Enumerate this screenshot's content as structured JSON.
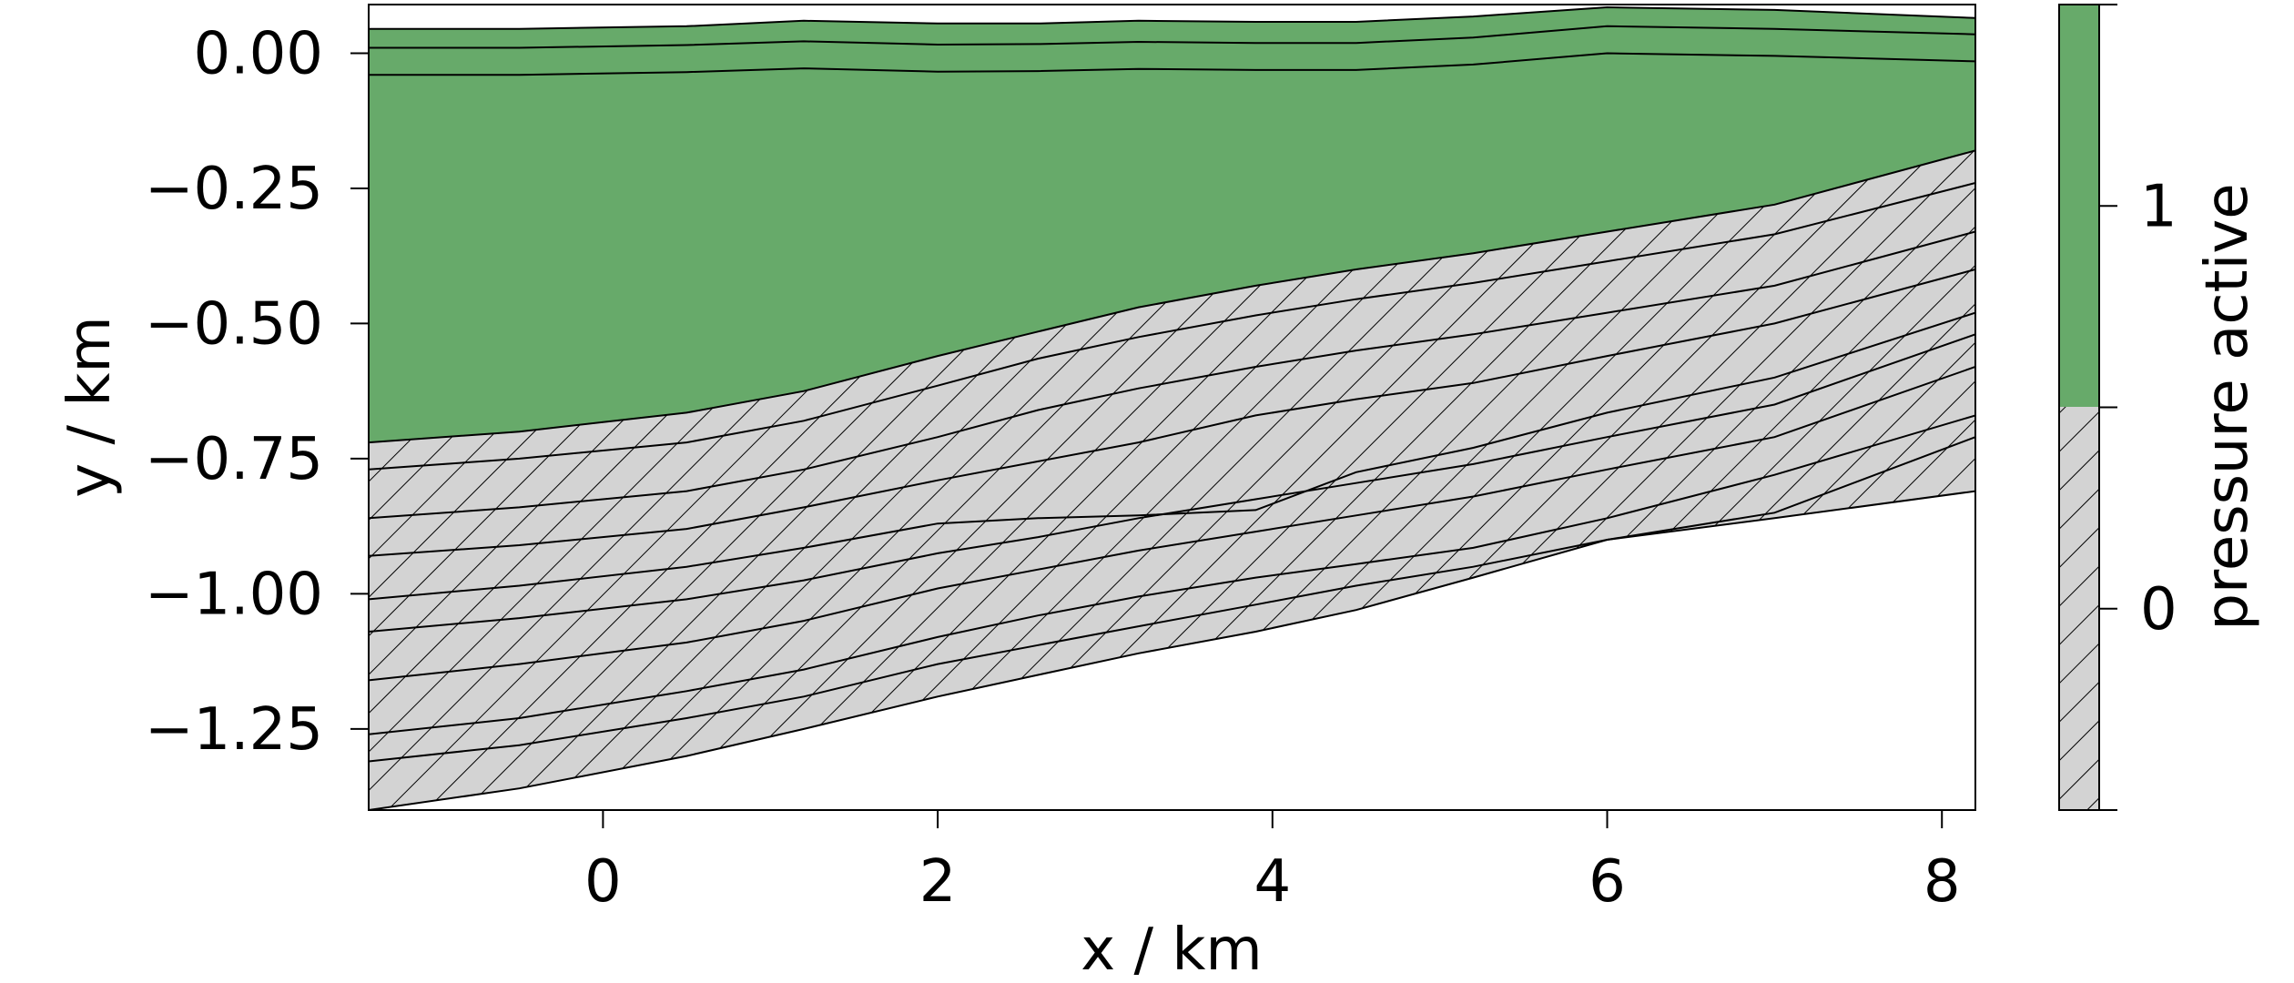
{
  "chart_data": {
    "type": "heatmap",
    "title": "",
    "xlabel": "x / km",
    "ylabel": "y / km",
    "xlim": [
      -1.4,
      8.2
    ],
    "ylim": [
      -1.4,
      0.09
    ],
    "x_ticks": [
      {
        "value": 0,
        "label": "0"
      },
      {
        "value": 2,
        "label": "2"
      },
      {
        "value": 4,
        "label": "4"
      },
      {
        "value": 6,
        "label": "6"
      },
      {
        "value": 8,
        "label": "8"
      }
    ],
    "y_ticks": [
      {
        "value": 0.0,
        "label": "0.00"
      },
      {
        "value": -0.25,
        "label": "−0.25"
      },
      {
        "value": -0.5,
        "label": "−0.50"
      },
      {
        "value": -0.75,
        "label": "−0.75"
      },
      {
        "value": -1.0,
        "label": "−1.00"
      },
      {
        "value": -1.25,
        "label": "−1.25"
      }
    ],
    "colorbar": {
      "label": "pressure active",
      "ticks": [
        {
          "value": 1,
          "label": "1"
        },
        {
          "value": 0,
          "label": "0"
        }
      ],
      "classes": [
        {
          "value": 1,
          "color": "#67aa6a",
          "hatch": false
        },
        {
          "value": 0,
          "color": "#d3d3d3",
          "hatch": true
        }
      ]
    },
    "colors": {
      "active": "#67aa6a",
      "inactive": "#d3d3d3",
      "edge": "#000000"
    },
    "x": [
      -1.4,
      -0.5,
      0.5,
      1.2,
      2.0,
      2.6,
      3.2,
      3.9,
      4.5,
      5.2,
      6.0,
      7.0,
      8.2
    ],
    "interfaces": [
      {
        "name": "top",
        "y": [
          0.045,
          0.045,
          0.05,
          0.06,
          0.055,
          0.055,
          0.06,
          0.058,
          0.058,
          0.068,
          0.085,
          0.08,
          0.065
        ]
      },
      {
        "name": "i1",
        "y": [
          0.01,
          0.01,
          0.015,
          0.022,
          0.016,
          0.017,
          0.021,
          0.019,
          0.019,
          0.029,
          0.05,
          0.045,
          0.035
        ]
      },
      {
        "name": "i2",
        "y": [
          -0.04,
          -0.04,
          -0.035,
          -0.028,
          -0.034,
          -0.033,
          -0.029,
          -0.031,
          -0.031,
          -0.021,
          0.0,
          -0.005,
          -0.015
        ]
      },
      {
        "name": "active-bottom",
        "y": [
          -0.72,
          -0.7,
          -0.665,
          -0.625,
          -0.56,
          -0.515,
          -0.47,
          -0.43,
          -0.4,
          -0.37,
          -0.33,
          -0.28,
          -0.18
        ]
      },
      {
        "name": "i4",
        "y": [
          -0.77,
          -0.75,
          -0.72,
          -0.68,
          -0.615,
          -0.565,
          -0.525,
          -0.485,
          -0.455,
          -0.425,
          -0.385,
          -0.335,
          -0.24
        ]
      },
      {
        "name": "i5",
        "y": [
          -0.86,
          -0.84,
          -0.81,
          -0.77,
          -0.71,
          -0.66,
          -0.62,
          -0.58,
          -0.55,
          -0.52,
          -0.48,
          -0.43,
          -0.33
        ]
      },
      {
        "name": "i6",
        "y": [
          -0.93,
          -0.91,
          -0.88,
          -0.84,
          -0.79,
          -0.755,
          -0.72,
          -0.67,
          -0.64,
          -0.61,
          -0.56,
          -0.5,
          -0.4
        ]
      },
      {
        "name": "i7",
        "y": [
          -1.01,
          -0.985,
          -0.95,
          -0.915,
          -0.87,
          -0.86,
          -0.855,
          -0.845,
          -0.775,
          -0.73,
          -0.665,
          -0.6,
          -0.48
        ]
      },
      {
        "name": "i8",
        "y": [
          -1.07,
          -1.045,
          -1.01,
          -0.975,
          -0.925,
          -0.895,
          -0.86,
          -0.825,
          -0.795,
          -0.76,
          -0.71,
          -0.65,
          -0.52
        ]
      },
      {
        "name": "i9",
        "y": [
          -1.16,
          -1.13,
          -1.09,
          -1.05,
          -0.99,
          -0.955,
          -0.92,
          -0.885,
          -0.855,
          -0.82,
          -0.77,
          -0.71,
          -0.58
        ]
      },
      {
        "name": "i10",
        "y": [
          -1.26,
          -1.23,
          -1.18,
          -1.14,
          -1.08,
          -1.04,
          -1.005,
          -0.97,
          -0.945,
          -0.915,
          -0.86,
          -0.78,
          -0.67
        ]
      },
      {
        "name": "i11",
        "y": [
          -1.31,
          -1.28,
          -1.23,
          -1.19,
          -1.13,
          -1.095,
          -1.06,
          -1.02,
          -0.985,
          -0.95,
          -0.9,
          -0.85,
          -0.71
        ]
      },
      {
        "name": "bottom",
        "y": [
          -1.4,
          -1.36,
          -1.3,
          -1.25,
          -1.19,
          -1.15,
          -1.11,
          -1.07,
          -1.03,
          -0.97,
          -0.9,
          -0.86,
          -0.81
        ]
      }
    ],
    "active_region": {
      "top": "top",
      "bottom": "active-bottom",
      "value": 1
    },
    "inactive_region": {
      "top": "active-bottom",
      "bottom": "bottom",
      "value": 0
    }
  }
}
